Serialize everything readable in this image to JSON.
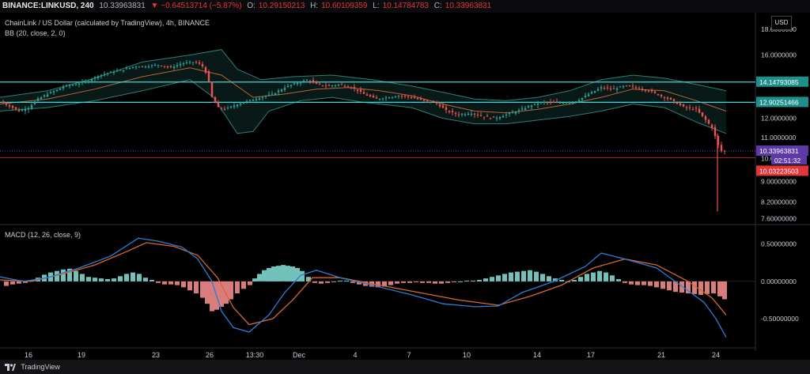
{
  "header": {
    "symbol": "BINANCE:LINKUSD, 240",
    "last": "10.33963831",
    "change": "▼ −0.64513714 (−5.87%)",
    "open_label": "O:",
    "open": "10.29150213",
    "high_label": "H:",
    "high": "10.60109359",
    "low_label": "L:",
    "low": "10.14784783",
    "close_label": "C:",
    "close": "10.33963831"
  },
  "legend": {
    "title": "ChainLink / US Dollar (calculated by TradingView), 4h, BINANCE",
    "bb": "BB (20, close, 2, 0)",
    "macd": "MACD (12, 26, close, 9)"
  },
  "currency": "USD",
  "footer": {
    "brand": "TradingView"
  },
  "colors": {
    "up": "#26a69a",
    "down": "#ef5350",
    "hline": "#3fd6d4",
    "bb_band": "#2f7d76",
    "bb_basis": "#b5653a",
    "macd_line": "#2f7bd6",
    "signal_line": "#d9662f",
    "price_tag": "#5c3aa6",
    "red_tag": "#e2363b",
    "teal_tag": "#1f8f8c"
  },
  "chart_data": {
    "type": "candlestick",
    "x_ticks": [
      "16",
      "19",
      "23",
      "26",
      "13:30",
      "Dec",
      "4",
      "7",
      "10",
      "14",
      "17",
      "21",
      "24"
    ],
    "price_axis": {
      "ticks": [
        "18.0000000",
        "16.0000000",
        "14.0000000",
        "12.0000000",
        "11.0000000",
        "10.0000000",
        "9.00000000",
        "8.20000000",
        "7.60000000"
      ],
      "scale": "log"
    },
    "levels": {
      "resistance_1": "14.14793085",
      "resistance_2": "12.90251466",
      "last_price": "10.33963831",
      "countdown": "02:51:32",
      "red_level": "10.03223503"
    },
    "macd_axis": {
      "ticks": [
        "0.50000000",
        "0.00000000",
        "-0.50000000"
      ]
    },
    "price_series": [
      [
        0,
        12.95
      ],
      [
        12,
        12.7
      ],
      [
        24,
        12.4
      ],
      [
        36,
        12.6
      ],
      [
        48,
        13.1
      ],
      [
        60,
        13.4
      ],
      [
        70,
        13.6
      ],
      [
        82,
        13.9
      ],
      [
        95,
        14.0
      ],
      [
        110,
        14.2
      ],
      [
        125,
        14.6
      ],
      [
        140,
        14.8
      ],
      [
        155,
        14.95
      ],
      [
        170,
        15.2
      ],
      [
        185,
        15.2
      ],
      [
        200,
        15.3
      ],
      [
        215,
        15.1
      ],
      [
        230,
        15.4
      ],
      [
        245,
        15.5
      ],
      [
        255,
        15.3
      ],
      [
        262,
        14.6
      ],
      [
        268,
        13.2
      ],
      [
        275,
        12.6
      ],
      [
        285,
        12.5
      ],
      [
        300,
        12.8
      ],
      [
        315,
        13.0
      ],
      [
        330,
        13.2
      ],
      [
        345,
        13.4
      ],
      [
        360,
        13.8
      ],
      [
        375,
        14.1
      ],
      [
        390,
        14.3
      ],
      [
        400,
        14.0
      ],
      [
        415,
        13.9
      ],
      [
        430,
        14.0
      ],
      [
        445,
        13.8
      ],
      [
        460,
        13.4
      ],
      [
        475,
        13.1
      ],
      [
        490,
        13.2
      ],
      [
        505,
        13.3
      ],
      [
        520,
        13.2
      ],
      [
        535,
        13.0
      ],
      [
        550,
        12.9
      ],
      [
        565,
        12.4
      ],
      [
        580,
        12.2
      ],
      [
        595,
        12.3
      ],
      [
        610,
        12.1
      ],
      [
        625,
        12.0
      ],
      [
        640,
        12.2
      ],
      [
        655,
        12.4
      ],
      [
        670,
        12.7
      ],
      [
        685,
        12.9
      ],
      [
        700,
        12.9
      ],
      [
        715,
        12.9
      ],
      [
        730,
        13.0
      ],
      [
        745,
        13.4
      ],
      [
        760,
        13.8
      ],
      [
        775,
        13.7
      ],
      [
        790,
        13.9
      ],
      [
        805,
        13.8
      ],
      [
        820,
        13.6
      ],
      [
        835,
        13.3
      ],
      [
        850,
        13.0
      ],
      [
        865,
        12.6
      ],
      [
        880,
        12.5
      ],
      [
        890,
        12.0
      ],
      [
        900,
        11.5
      ],
      [
        907,
        10.7
      ],
      [
        912,
        10.34
      ],
      [
        916,
        10.34
      ]
    ],
    "bb_upper": [
      [
        0,
        13.2
      ],
      [
        60,
        13.6
      ],
      [
        120,
        14.4
      ],
      [
        180,
        15.5
      ],
      [
        240,
        16.0
      ],
      [
        280,
        16.4
      ],
      [
        300,
        15.0
      ],
      [
        330,
        14.3
      ],
      [
        370,
        14.5
      ],
      [
        420,
        14.6
      ],
      [
        470,
        14.3
      ],
      [
        520,
        13.9
      ],
      [
        560,
        13.5
      ],
      [
        600,
        13.1
      ],
      [
        640,
        13.0
      ],
      [
        680,
        13.2
      ],
      [
        720,
        13.6
      ],
      [
        760,
        14.3
      ],
      [
        800,
        14.6
      ],
      [
        840,
        14.4
      ],
      [
        880,
        14.0
      ],
      [
        918,
        13.6
      ]
    ],
    "bb_lower": [
      [
        0,
        12.4
      ],
      [
        60,
        12.6
      ],
      [
        120,
        13.0
      ],
      [
        180,
        13.6
      ],
      [
        240,
        14.3
      ],
      [
        270,
        13.2
      ],
      [
        300,
        11.2
      ],
      [
        320,
        11.3
      ],
      [
        340,
        12.4
      ],
      [
        380,
        13.0
      ],
      [
        420,
        13.2
      ],
      [
        460,
        12.9
      ],
      [
        520,
        12.6
      ],
      [
        560,
        12.0
      ],
      [
        600,
        11.7
      ],
      [
        640,
        11.7
      ],
      [
        680,
        11.9
      ],
      [
        720,
        12.1
      ],
      [
        760,
        12.4
      ],
      [
        800,
        12.8
      ],
      [
        840,
        12.6
      ],
      [
        880,
        11.8
      ],
      [
        918,
        11.2
      ]
    ],
    "bb_basis": [
      [
        0,
        12.8
      ],
      [
        60,
        13.1
      ],
      [
        120,
        13.7
      ],
      [
        180,
        14.5
      ],
      [
        240,
        15.1
      ],
      [
        280,
        14.6
      ],
      [
        320,
        13.2
      ],
      [
        360,
        13.4
      ],
      [
        400,
        13.7
      ],
      [
        440,
        13.8
      ],
      [
        480,
        13.6
      ],
      [
        520,
        13.3
      ],
      [
        560,
        12.8
      ],
      [
        600,
        12.4
      ],
      [
        640,
        12.3
      ],
      [
        680,
        12.5
      ],
      [
        720,
        12.8
      ],
      [
        760,
        13.2
      ],
      [
        800,
        13.7
      ],
      [
        840,
        13.6
      ],
      [
        880,
        13.0
      ],
      [
        918,
        12.4
      ]
    ],
    "macd_line": [
      [
        0,
        0.06
      ],
      [
        30,
        0.0
      ],
      [
        60,
        0.05
      ],
      [
        100,
        0.18
      ],
      [
        140,
        0.34
      ],
      [
        175,
        0.58
      ],
      [
        200,
        0.54
      ],
      [
        230,
        0.46
      ],
      [
        250,
        0.3
      ],
      [
        268,
        0.0
      ],
      [
        280,
        -0.4
      ],
      [
        295,
        -0.62
      ],
      [
        315,
        -0.68
      ],
      [
        340,
        -0.45
      ],
      [
        360,
        -0.15
      ],
      [
        380,
        0.08
      ],
      [
        400,
        0.15
      ],
      [
        430,
        0.05
      ],
      [
        470,
        -0.05
      ],
      [
        520,
        -0.18
      ],
      [
        560,
        -0.3
      ],
      [
        600,
        -0.34
      ],
      [
        630,
        -0.33
      ],
      [
        660,
        -0.15
      ],
      [
        700,
        0.0
      ],
      [
        740,
        0.2
      ],
      [
        760,
        0.38
      ],
      [
        790,
        0.3
      ],
      [
        830,
        0.18
      ],
      [
        860,
        -0.05
      ],
      [
        890,
        -0.28
      ],
      [
        905,
        -0.5
      ],
      [
        918,
        -0.75
      ]
    ],
    "signal_line": [
      [
        0,
        0.02
      ],
      [
        40,
        0.0
      ],
      [
        80,
        0.1
      ],
      [
        120,
        0.22
      ],
      [
        160,
        0.4
      ],
      [
        185,
        0.52
      ],
      [
        220,
        0.47
      ],
      [
        250,
        0.35
      ],
      [
        275,
        0.05
      ],
      [
        295,
        -0.35
      ],
      [
        315,
        -0.58
      ],
      [
        345,
        -0.5
      ],
      [
        370,
        -0.25
      ],
      [
        395,
        0.05
      ],
      [
        430,
        0.05
      ],
      [
        480,
        -0.05
      ],
      [
        530,
        -0.15
      ],
      [
        580,
        -0.25
      ],
      [
        630,
        -0.32
      ],
      [
        670,
        -0.2
      ],
      [
        710,
        -0.05
      ],
      [
        750,
        0.18
      ],
      [
        790,
        0.3
      ],
      [
        830,
        0.22
      ],
      [
        870,
        0.0
      ],
      [
        900,
        -0.22
      ],
      [
        918,
        -0.45
      ]
    ],
    "macd_hist": [
      [
        8,
        -0.06
      ],
      [
        16,
        -0.04
      ],
      [
        24,
        -0.03
      ],
      [
        32,
        -0.02
      ],
      [
        40,
        0.02
      ],
      [
        48,
        0.05
      ],
      [
        56,
        0.09
      ],
      [
        64,
        0.12
      ],
      [
        72,
        0.14
      ],
      [
        80,
        0.16
      ],
      [
        88,
        0.17
      ],
      [
        96,
        0.14
      ],
      [
        104,
        0.1
      ],
      [
        112,
        0.06
      ],
      [
        120,
        0.05
      ],
      [
        128,
        0.04
      ],
      [
        136,
        0.03
      ],
      [
        144,
        0.04
      ],
      [
        152,
        0.07
      ],
      [
        160,
        0.1
      ],
      [
        168,
        0.12
      ],
      [
        176,
        0.1
      ],
      [
        184,
        0.05
      ],
      [
        192,
        0.02
      ],
      [
        200,
        -0.02
      ],
      [
        208,
        -0.04
      ],
      [
        216,
        -0.04
      ],
      [
        224,
        -0.05
      ],
      [
        232,
        -0.08
      ],
      [
        240,
        -0.12
      ],
      [
        248,
        -0.16
      ],
      [
        256,
        -0.22
      ],
      [
        262,
        -0.3
      ],
      [
        268,
        -0.4
      ],
      [
        274,
        -0.38
      ],
      [
        280,
        -0.34
      ],
      [
        286,
        -0.3
      ],
      [
        292,
        -0.24
      ],
      [
        300,
        -0.16
      ],
      [
        308,
        -0.1
      ],
      [
        316,
        -0.05
      ],
      [
        322,
        0.04
      ],
      [
        328,
        0.1
      ],
      [
        334,
        0.15
      ],
      [
        340,
        0.18
      ],
      [
        346,
        0.2
      ],
      [
        352,
        0.21
      ],
      [
        358,
        0.22
      ],
      [
        364,
        0.21
      ],
      [
        370,
        0.2
      ],
      [
        376,
        0.18
      ],
      [
        382,
        0.14
      ],
      [
        390,
        0.06
      ],
      [
        398,
        -0.02
      ],
      [
        406,
        -0.03
      ],
      [
        414,
        -0.02
      ],
      [
        422,
        -0.01
      ],
      [
        430,
        0.01
      ],
      [
        438,
        0.01
      ],
      [
        446,
        -0.02
      ],
      [
        454,
        -0.04
      ],
      [
        462,
        -0.06
      ],
      [
        470,
        -0.07
      ],
      [
        478,
        -0.08
      ],
      [
        486,
        -0.07
      ],
      [
        494,
        -0.05
      ],
      [
        502,
        -0.03
      ],
      [
        510,
        -0.02
      ],
      [
        518,
        -0.02
      ],
      [
        526,
        -0.01
      ],
      [
        534,
        -0.02
      ],
      [
        542,
        -0.02
      ],
      [
        550,
        -0.03
      ],
      [
        558,
        -0.03
      ],
      [
        566,
        -0.02
      ],
      [
        574,
        -0.01
      ],
      [
        582,
        0.0
      ],
      [
        590,
        0.01
      ],
      [
        598,
        0.01
      ],
      [
        606,
        0.02
      ],
      [
        614,
        0.04
      ],
      [
        622,
        0.06
      ],
      [
        630,
        0.08
      ],
      [
        638,
        0.1
      ],
      [
        646,
        0.12
      ],
      [
        654,
        0.13
      ],
      [
        662,
        0.14
      ],
      [
        670,
        0.15
      ],
      [
        678,
        0.13
      ],
      [
        686,
        0.1
      ],
      [
        694,
        0.07
      ],
      [
        702,
        0.04
      ],
      [
        710,
        0.02
      ],
      [
        718,
        0.0
      ],
      [
        726,
        0.02
      ],
      [
        734,
        0.06
      ],
      [
        742,
        0.1
      ],
      [
        750,
        0.12
      ],
      [
        758,
        0.14
      ],
      [
        766,
        0.12
      ],
      [
        774,
        0.08
      ],
      [
        782,
        0.03
      ],
      [
        790,
        -0.02
      ],
      [
        798,
        -0.04
      ],
      [
        806,
        -0.05
      ],
      [
        814,
        -0.05
      ],
      [
        822,
        -0.06
      ],
      [
        830,
        -0.08
      ],
      [
        838,
        -0.1
      ],
      [
        846,
        -0.12
      ],
      [
        854,
        -0.14
      ],
      [
        862,
        -0.15
      ],
      [
        870,
        -0.16
      ],
      [
        878,
        -0.17
      ],
      [
        886,
        -0.18
      ],
      [
        894,
        -0.17
      ],
      [
        902,
        -0.16
      ],
      [
        910,
        -0.2
      ],
      [
        916,
        -0.24
      ]
    ]
  }
}
